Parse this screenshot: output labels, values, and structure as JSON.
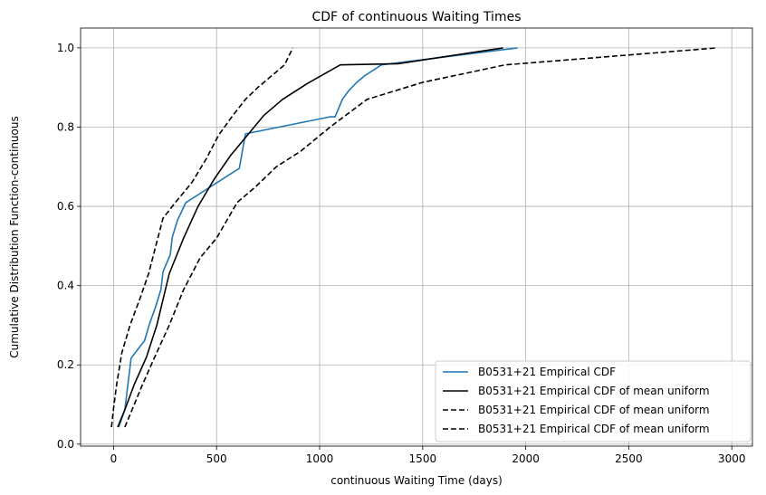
{
  "chart_data": {
    "type": "line",
    "title": "CDF of continuous Waiting Times",
    "xlabel": "continuous Waiting Time (days)",
    "ylabel": "Cumulative Distribution Function-continuous",
    "xlim": [
      -160,
      3100
    ],
    "ylim": [
      -0.005,
      1.05
    ],
    "xticks": [
      0,
      500,
      1000,
      1500,
      2000,
      2500,
      3000
    ],
    "yticks": [
      0.0,
      0.2,
      0.4,
      0.6,
      0.8,
      1.0
    ],
    "grid": true,
    "legend_position": "lower-right",
    "series": [
      {
        "name": "B0531+21 Empirical CDF",
        "color": "#1f77b4",
        "style": "solid",
        "x": [
          25,
          55,
          85,
          150,
          175,
          205,
          230,
          240,
          275,
          285,
          310,
          350,
          610,
          640,
          1050,
          1075,
          1110,
          1140,
          1180,
          1220,
          1300,
          1960
        ],
        "y": [
          0.043,
          0.087,
          0.217,
          0.261,
          0.304,
          0.348,
          0.391,
          0.435,
          0.478,
          0.522,
          0.565,
          0.609,
          0.696,
          0.783,
          0.826,
          0.826,
          0.87,
          0.891,
          0.913,
          0.93,
          0.957,
          1.0
        ]
      },
      {
        "name": "B0531+21 Empirical CDF of mean uniform",
        "color": "#000000",
        "style": "solid",
        "x": [
          20,
          55,
          100,
          160,
          210,
          270,
          340,
          410,
          490,
          570,
          650,
          730,
          820,
          940,
          1100,
          1380,
          1890
        ],
        "y": [
          0.043,
          0.087,
          0.15,
          0.22,
          0.3,
          0.43,
          0.52,
          0.6,
          0.67,
          0.73,
          0.78,
          0.83,
          0.87,
          0.91,
          0.957,
          0.96,
          1.0
        ]
      },
      {
        "name": "B0531+21 Empirical CDF of mean uniform",
        "color": "#000000",
        "style": "dashed",
        "x": [
          -10,
          0,
          15,
          40,
          80,
          130,
          170,
          240,
          300,
          380,
          450,
          510,
          580,
          640,
          700,
          830,
          870
        ],
        "y": [
          0.043,
          0.09,
          0.15,
          0.23,
          0.3,
          0.37,
          0.43,
          0.57,
          0.61,
          0.66,
          0.72,
          0.78,
          0.83,
          0.87,
          0.9,
          0.957,
          1.0
        ]
      },
      {
        "name": "B0531+21 Empirical CDF of mean uniform",
        "color": "#000000",
        "style": "dashed",
        "x": [
          55,
          90,
          140,
          200,
          270,
          340,
          420,
          500,
          600,
          690,
          790,
          910,
          1050,
          1230,
          1500,
          1900,
          2930
        ],
        "y": [
          0.043,
          0.087,
          0.15,
          0.22,
          0.3,
          0.39,
          0.47,
          0.52,
          0.61,
          0.65,
          0.7,
          0.74,
          0.8,
          0.87,
          0.913,
          0.957,
          1.0
        ]
      }
    ]
  }
}
